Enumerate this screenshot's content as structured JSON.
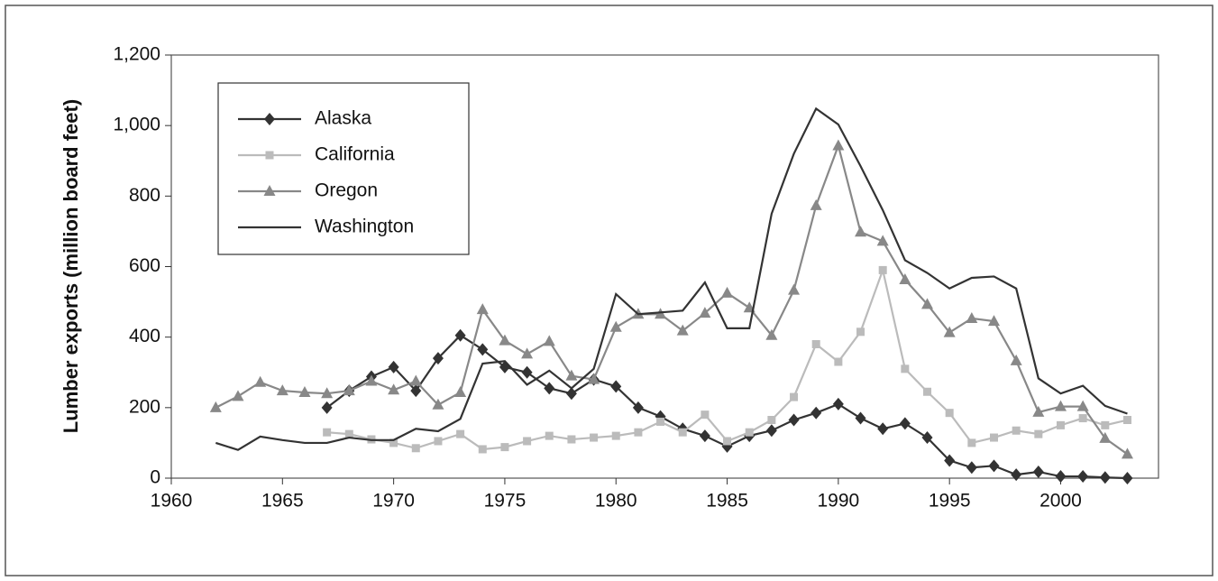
{
  "chart_data": {
    "type": "line",
    "y_label": "Lumber exports  (million board feet)",
    "x": [
      1962,
      1963,
      1964,
      1965,
      1966,
      1967,
      1968,
      1969,
      1970,
      1971,
      1972,
      1973,
      1974,
      1975,
      1976,
      1977,
      1978,
      1979,
      1980,
      1981,
      1982,
      1983,
      1984,
      1985,
      1986,
      1987,
      1988,
      1989,
      1990,
      1991,
      1992,
      1993,
      1994,
      1995,
      1996,
      1997,
      1998,
      1999,
      2000,
      2001,
      2002,
      2003
    ],
    "series": [
      {
        "name": "Alaska",
        "color": "#333333",
        "marker": "diamond",
        "values": [
          null,
          null,
          null,
          null,
          null,
          200,
          248,
          288,
          315,
          248,
          340,
          405,
          365,
          315,
          300,
          255,
          240,
          280,
          260,
          200,
          175,
          140,
          120,
          90,
          120,
          135,
          165,
          185,
          210,
          170,
          140,
          155,
          115,
          50,
          30,
          35,
          10,
          18,
          5,
          5,
          2,
          0
        ]
      },
      {
        "name": "California",
        "color": "#bbbbbb",
        "marker": "square",
        "values": [
          null,
          null,
          null,
          null,
          null,
          130,
          125,
          110,
          100,
          85,
          105,
          125,
          82,
          88,
          105,
          120,
          110,
          115,
          120,
          130,
          160,
          130,
          180,
          105,
          130,
          165,
          230,
          380,
          330,
          415,
          590,
          310,
          245,
          185,
          100,
          115,
          135,
          125,
          150,
          170,
          150,
          165
        ]
      },
      {
        "name": "Oregon",
        "color": "#888888",
        "marker": "triangle",
        "values": [
          200,
          232,
          272,
          248,
          243,
          240,
          248,
          275,
          250,
          275,
          208,
          243,
          478,
          390,
          352,
          388,
          290,
          280,
          428,
          465,
          465,
          418,
          468,
          525,
          483,
          405,
          533,
          773,
          943,
          698,
          672,
          563,
          493,
          413,
          453,
          445,
          333,
          187,
          203,
          203,
          113,
          68
        ]
      },
      {
        "name": "Washington",
        "color": "#333333",
        "marker": "none",
        "values": [
          100,
          80,
          118,
          108,
          100,
          100,
          115,
          108,
          108,
          140,
          133,
          168,
          325,
          332,
          265,
          305,
          255,
          310,
          522,
          465,
          470,
          475,
          555,
          425,
          425,
          750,
          920,
          1048,
          1003,
          885,
          760,
          618,
          582,
          538,
          568,
          572,
          538,
          283,
          240,
          262,
          205,
          183
        ]
      }
    ],
    "xlim": [
      1960,
      2004.4
    ],
    "xticks": [
      1960,
      1965,
      1970,
      1975,
      1980,
      1985,
      1990,
      1995,
      2000
    ],
    "ylim": [
      0,
      1200
    ],
    "yticks": [
      0,
      200,
      400,
      600,
      800,
      {
        "value": 1000,
        "label": "1,000"
      },
      {
        "value": 1200,
        "label": "1,200"
      }
    ],
    "legend": "upper left"
  }
}
